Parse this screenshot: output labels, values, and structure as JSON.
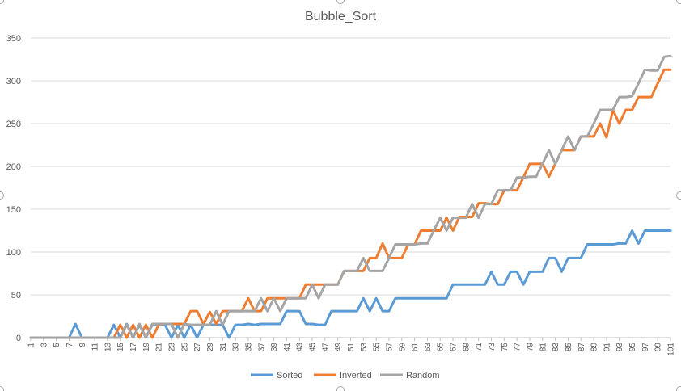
{
  "chart_data": {
    "type": "line",
    "title": "Bubble_Sort",
    "xlabel": "",
    "ylabel": "",
    "ylim": [
      0,
      350
    ],
    "yticks": [
      0,
      50,
      100,
      150,
      200,
      250,
      300,
      350
    ],
    "x": [
      1,
      2,
      3,
      4,
      5,
      6,
      7,
      8,
      9,
      10,
      11,
      12,
      13,
      14,
      15,
      16,
      17,
      18,
      19,
      20,
      21,
      22,
      23,
      24,
      25,
      26,
      27,
      28,
      29,
      30,
      31,
      32,
      33,
      34,
      35,
      36,
      37,
      38,
      39,
      40,
      41,
      42,
      43,
      44,
      45,
      46,
      47,
      48,
      49,
      50,
      51,
      52,
      53,
      54,
      55,
      56,
      57,
      58,
      59,
      60,
      61,
      62,
      63,
      64,
      65,
      66,
      67,
      68,
      69,
      70,
      71,
      72,
      73,
      74,
      75,
      76,
      77,
      78,
      79,
      80,
      81,
      82,
      83,
      84,
      85,
      86,
      87,
      88,
      89,
      90,
      91,
      92,
      93,
      94,
      95,
      96,
      97,
      98,
      99,
      100,
      101
    ],
    "xtick_labels": [
      "1",
      "3",
      "5",
      "7",
      "9",
      "11",
      "13",
      "15",
      "17",
      "19",
      "21",
      "23",
      "25",
      "27",
      "29",
      "31",
      "33",
      "35",
      "37",
      "39",
      "41",
      "43",
      "45",
      "47",
      "49",
      "51",
      "53",
      "55",
      "57",
      "59",
      "61",
      "63",
      "65",
      "67",
      "69",
      "71",
      "73",
      "75",
      "77",
      "79",
      "81",
      "83",
      "85",
      "87",
      "89",
      "91",
      "93",
      "95",
      "97",
      "99",
      "101"
    ],
    "grid": true,
    "legend_position": "bottom",
    "series": [
      {
        "name": "Sorted",
        "color": "#5b9bd5",
        "values": [
          0,
          0,
          0,
          0,
          0,
          0,
          0,
          16,
          0,
          0,
          0,
          0,
          0,
          15,
          0,
          16,
          0,
          15,
          0,
          15,
          15,
          15,
          0,
          15,
          0,
          15,
          0,
          15,
          15,
          15,
          15,
          0,
          15,
          15,
          16,
          15,
          16,
          16,
          16,
          16,
          31,
          31,
          31,
          16,
          16,
          15,
          15,
          31,
          31,
          31,
          31,
          31,
          46,
          31,
          46,
          31,
          31,
          46,
          46,
          46,
          46,
          46,
          46,
          46,
          46,
          46,
          62,
          62,
          62,
          62,
          62,
          62,
          77,
          62,
          62,
          77,
          77,
          62,
          77,
          77,
          77,
          93,
          93,
          77,
          93,
          93,
          93,
          109,
          109,
          109,
          109,
          109,
          110,
          110,
          125,
          110,
          125,
          125,
          125,
          125,
          125
        ]
      },
      {
        "name": "Inverted",
        "color": "#ed7d31",
        "values": [
          0,
          0,
          0,
          0,
          0,
          0,
          0,
          0,
          0,
          0,
          0,
          0,
          0,
          0,
          15,
          0,
          15,
          0,
          15,
          0,
          15,
          16,
          16,
          16,
          16,
          31,
          31,
          16,
          30,
          16,
          31,
          31,
          31,
          31,
          46,
          31,
          31,
          46,
          46,
          46,
          46,
          46,
          46,
          62,
          62,
          62,
          62,
          62,
          62,
          78,
          78,
          78,
          78,
          93,
          93,
          110,
          93,
          93,
          93,
          109,
          109,
          125,
          125,
          125,
          125,
          140,
          125,
          141,
          141,
          141,
          157,
          157,
          156,
          156,
          172,
          172,
          172,
          187,
          203,
          203,
          203,
          188,
          203,
          219,
          219,
          219,
          235,
          235,
          235,
          250,
          234,
          266,
          250,
          266,
          266,
          281,
          281,
          281,
          297,
          313,
          313
        ]
      },
      {
        "name": "Random",
        "color": "#a5a5a5",
        "values": [
          0,
          0,
          0,
          0,
          0,
          0,
          0,
          0,
          0,
          0,
          0,
          0,
          0,
          0,
          0,
          15,
          0,
          16,
          0,
          16,
          16,
          16,
          16,
          0,
          16,
          15,
          15,
          15,
          15,
          31,
          15,
          31,
          31,
          31,
          31,
          31,
          46,
          31,
          46,
          31,
          46,
          46,
          46,
          46,
          62,
          46,
          62,
          62,
          62,
          78,
          78,
          78,
          93,
          78,
          78,
          78,
          93,
          109,
          109,
          109,
          109,
          110,
          110,
          125,
          140,
          125,
          140,
          140,
          140,
          156,
          140,
          156,
          156,
          172,
          172,
          172,
          187,
          187,
          188,
          188,
          203,
          219,
          203,
          219,
          235,
          219,
          235,
          235,
          250,
          266,
          266,
          266,
          281,
          281,
          282,
          297,
          313,
          312,
          312,
          328,
          329
        ]
      }
    ]
  }
}
